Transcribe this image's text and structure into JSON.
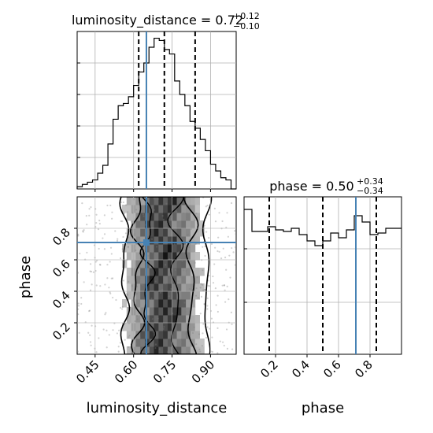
{
  "chart_data": [
    {
      "type": "histogram",
      "parameter": "luminosity_distance",
      "title": {
        "text": "luminosity_distance = 0.72",
        "upper": "+0.12",
        "lower": "−0.10"
      },
      "xlim": [
        0.38,
        1.0
      ],
      "bins": {
        "edges": [
          0.38,
          0.4,
          0.42,
          0.44,
          0.46,
          0.48,
          0.5,
          0.52,
          0.54,
          0.56,
          0.58,
          0.6,
          0.62,
          0.64,
          0.66,
          0.68,
          0.7,
          0.72,
          0.74,
          0.76,
          0.78,
          0.8,
          0.82,
          0.84,
          0.86,
          0.88,
          0.9,
          0.92,
          0.94,
          0.96,
          0.98,
          1.0
        ],
        "heights": [
          2,
          4,
          6,
          8,
          14,
          21,
          40,
          62,
          74,
          76,
          82,
          92,
          104,
          112,
          126,
          134,
          132,
          124,
          120,
          96,
          84,
          74,
          60,
          54,
          44,
          34,
          22,
          16,
          10,
          8,
          0
        ]
      },
      "ymax": 140,
      "quantiles": [
        0.62,
        0.72,
        0.84
      ],
      "truth": 0.65,
      "grid": true
    },
    {
      "type": "histogram",
      "parameter": "phase",
      "title": {
        "text": "phase = 0.50",
        "upper": "+0.34",
        "lower": "−0.34"
      },
      "xlim": [
        0.0,
        1.0
      ],
      "xticks": [
        "0.2",
        "0.4",
        "0.6",
        "0.8"
      ],
      "xtick_values": [
        0.2,
        0.4,
        0.6,
        0.8
      ],
      "xlabel": "phase",
      "bins": {
        "edges": [
          0.0,
          0.05,
          0.1,
          0.15,
          0.2,
          0.25,
          0.3,
          0.35,
          0.4,
          0.45,
          0.5,
          0.55,
          0.6,
          0.65,
          0.7,
          0.75,
          0.8,
          0.85,
          0.9,
          0.95,
          1.0
        ],
        "heights": [
          92,
          78,
          78,
          81,
          79,
          78,
          80,
          76,
          72,
          69,
          72,
          77,
          74,
          79,
          88,
          84,
          76,
          77,
          80,
          80
        ]
      },
      "ymax": 100,
      "quantiles": [
        0.16,
        0.5,
        0.84
      ],
      "truth": 0.71,
      "grid": true
    },
    {
      "type": "heatmap",
      "x_parameter": "luminosity_distance",
      "y_parameter": "phase",
      "xlim": [
        0.38,
        1.0
      ],
      "ylim": [
        0.0,
        1.0
      ],
      "xticks": [
        "0.45",
        "0.60",
        "0.75",
        "0.90"
      ],
      "xtick_values": [
        0.45,
        0.6,
        0.75,
        0.9
      ],
      "yticks": [
        "0.2",
        "0.4",
        "0.6",
        "0.8"
      ],
      "ytick_values": [
        0.2,
        0.4,
        0.6,
        0.8
      ],
      "xlabel": "luminosity_distance",
      "ylabel": "phase",
      "truth": {
        "x": 0.65,
        "y": 0.71
      },
      "grid": true
    }
  ],
  "colors": {
    "truth": "#4682b4",
    "hist": "#000000",
    "grid": "#b0b0b0",
    "scatter": "#7f7f7f"
  }
}
